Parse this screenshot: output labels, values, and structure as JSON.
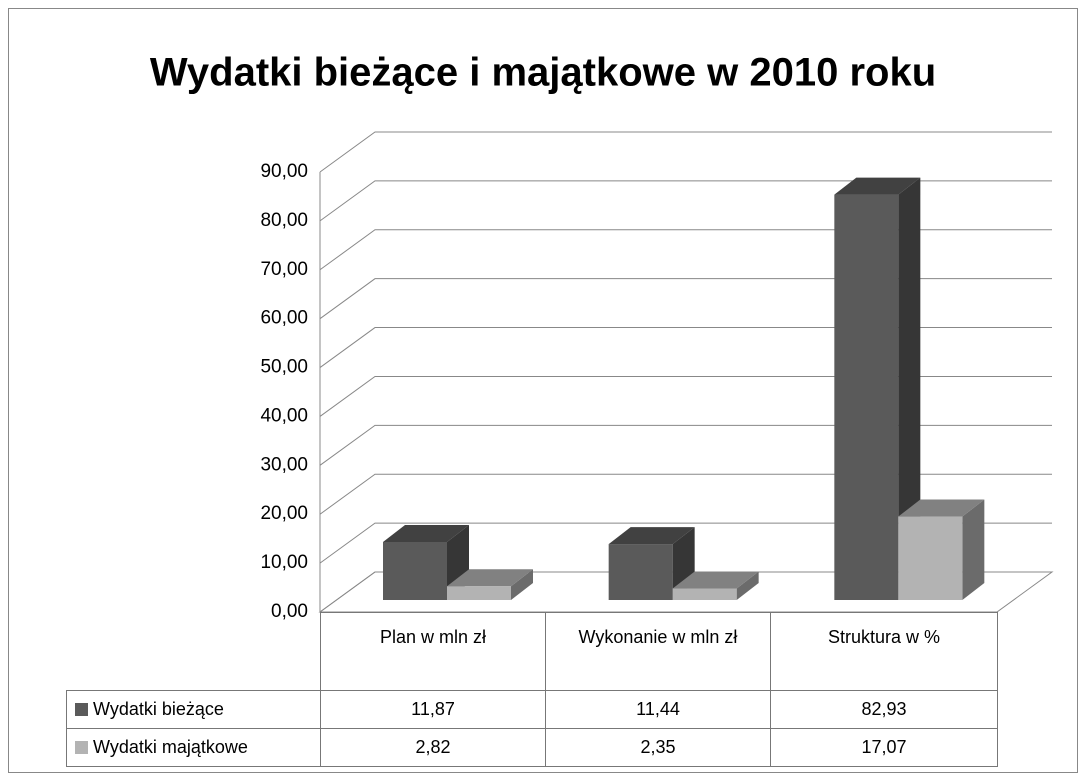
{
  "chart_data": {
    "type": "bar3d",
    "title": "Wydatki bieżące i majątkowe w 2010 roku",
    "categories": [
      "Plan w mln zł",
      "Wykonanie w mln zł",
      "Struktura w %"
    ],
    "series": [
      {
        "name": "Wydatki bieżące",
        "color": "#5a5a5a",
        "values": [
          11.87,
          11.44,
          82.93
        ],
        "value_labels": [
          "11,87",
          "11,44",
          "82,93"
        ]
      },
      {
        "name": "Wydatki majątkowe",
        "color": "#b3b3b3",
        "values": [
          2.82,
          2.35,
          17.07
        ],
        "value_labels": [
          "2,82",
          "2,35",
          "17,07"
        ]
      }
    ],
    "ylim": [
      0,
      90
    ],
    "yticks": [
      {
        "value": 0,
        "label": "0,00"
      },
      {
        "value": 10,
        "label": "10,00"
      },
      {
        "value": 20,
        "label": "20,00"
      },
      {
        "value": 30,
        "label": "30,00"
      },
      {
        "value": 40,
        "label": "40,00"
      },
      {
        "value": 50,
        "label": "50,00"
      },
      {
        "value": 60,
        "label": "60,00"
      },
      {
        "value": 70,
        "label": "70,00"
      },
      {
        "value": 80,
        "label": "80,00"
      },
      {
        "value": 90,
        "label": "90,00"
      }
    ],
    "grid": true,
    "data_table": true
  }
}
